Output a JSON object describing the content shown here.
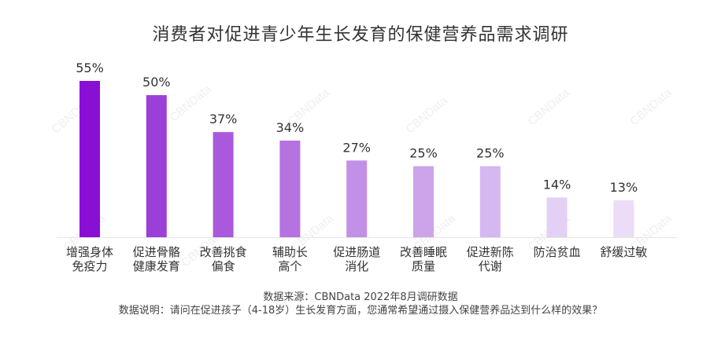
{
  "title": "消费者对促进青少年生长发育的保健营养品需求调研",
  "watermark": "CBNData",
  "source_line": "数据来源：CBNData 2022年8月调研数据",
  "note_line": "数据说明：请问在促进孩子（4-18岁）生长发育方面，您通常希望通过摄入保健营养品达到什么样的效果？",
  "chart_data": {
    "type": "bar",
    "categories": [
      [
        "增强身体",
        "免疫力"
      ],
      [
        "促进骨骼",
        "健康发育"
      ],
      [
        "改善挑食",
        "偏食"
      ],
      [
        "辅助长",
        "高个"
      ],
      [
        "促进肠道",
        "消化"
      ],
      [
        "改善睡眠",
        "质量"
      ],
      [
        "促进新陈",
        "代谢"
      ],
      [
        "防治贫血"
      ],
      [
        "舒缓过敏"
      ]
    ],
    "values": [
      55,
      50,
      37,
      34,
      27,
      25,
      25,
      14,
      13
    ],
    "value_labels": [
      "55%",
      "50%",
      "37%",
      "34%",
      "27%",
      "25%",
      "25%",
      "14%",
      "13%"
    ],
    "colors": [
      "#8a0fd4",
      "#9b3fd9",
      "#aa58dc",
      "#b672e0",
      "#c290e6",
      "#cda3ea",
      "#d5b8ef",
      "#e4d0f5",
      "#ebdcf7"
    ],
    "unit": "%",
    "ylim": [
      0,
      55
    ],
    "grid": false
  }
}
